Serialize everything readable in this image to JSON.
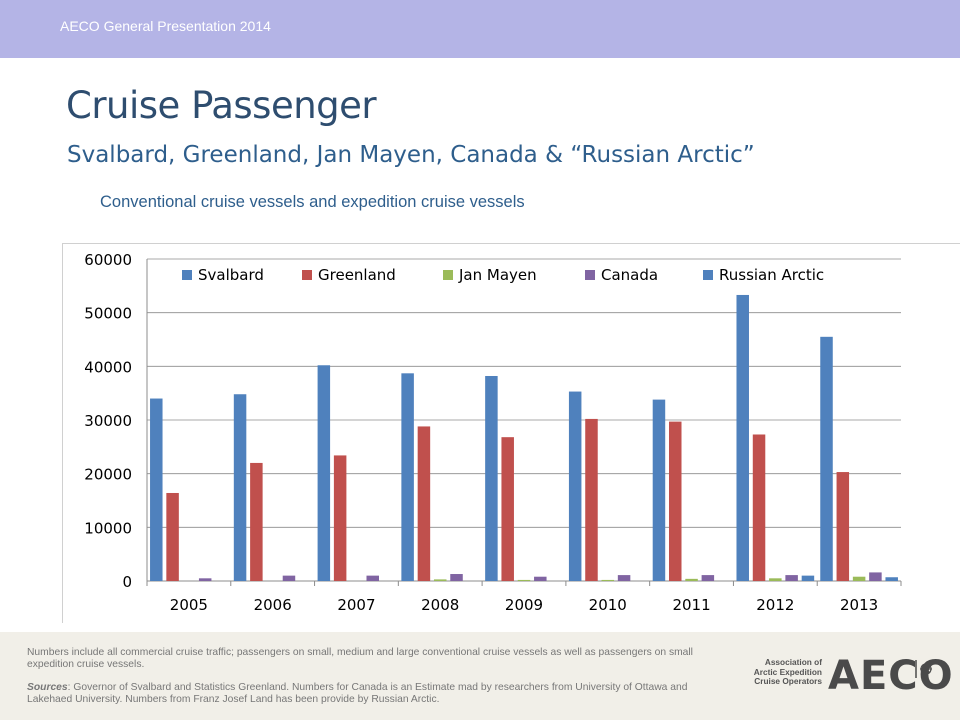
{
  "header": {
    "text": "AECO General Presentation 2014"
  },
  "title": "Cruise Passenger",
  "subtitle": "Svalbard, Greenland, Jan Mayen, Canada & “Russian Arctic”",
  "caption": "Conventional cruise vessels and expedition cruise vessels",
  "footer": {
    "note": "Numbers include all commercial cruise traffic; passengers on small, medium and large conventional cruise vessels as well as passengers on small expedition cruise vessels.",
    "sources_label": "Sources",
    "sources_text": ": Governor of Svalbard and Statistics Greenland. Numbers for Canada is an Estimate mad by researchers from University of Ottawa and Lakehaed University. Numbers from Franz Josef Land has been provide by Russian Arctic."
  },
  "logo": {
    "small_text": "Association of Arctic Expedition Cruise Operators",
    "big_text": "AECO"
  },
  "chart_data": {
    "type": "bar",
    "categories": [
      "2005",
      "2006",
      "2007",
      "2008",
      "2009",
      "2010",
      "2011",
      "2012",
      "2013"
    ],
    "series": [
      {
        "name": "Svalbard",
        "color": "#4f81bd",
        "values": [
          34000,
          34800,
          40200,
          38700,
          38200,
          35300,
          33800,
          53300,
          45500
        ]
      },
      {
        "name": "Greenland",
        "color": "#c0504d",
        "values": [
          16400,
          22000,
          23400,
          28800,
          26800,
          30200,
          29700,
          27300,
          20300
        ]
      },
      {
        "name": "Jan Mayen",
        "color": "#9bbb59",
        "values": [
          0,
          0,
          0,
          300,
          200,
          200,
          400,
          500,
          800
        ]
      },
      {
        "name": "Canada",
        "color": "#8064a2",
        "values": [
          500,
          1000,
          1000,
          1300,
          800,
          1100,
          1100,
          1100,
          1600
        ]
      },
      {
        "name": "Russian Arctic",
        "color": "#4f81bd",
        "values": [
          0,
          0,
          0,
          0,
          0,
          0,
          0,
          1000,
          700
        ]
      }
    ],
    "ylim": [
      0,
      60000
    ],
    "yticks": [
      "0",
      "10000",
      "20000",
      "30000",
      "40000",
      "50000",
      "60000"
    ],
    "grid": true,
    "legend_position": "top"
  }
}
